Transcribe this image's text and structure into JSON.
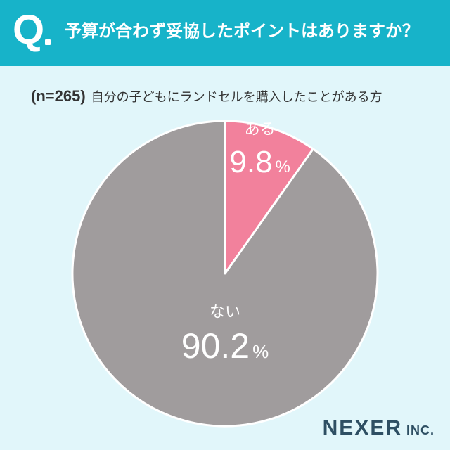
{
  "header": {
    "q_mark": "Q",
    "question": "予算が合わず妥協したポイントはありますか？"
  },
  "subtitle": {
    "n": "(n=265)",
    "text": "自分の子どもにランドセルを購入したことがある方"
  },
  "chart_data": {
    "type": "pie",
    "unit": "%",
    "slices": [
      {
        "label": "ある",
        "value": 9.8,
        "color": "#f2819c"
      },
      {
        "label": "ない",
        "value": 90.2,
        "color": "#a09c9d"
      }
    ]
  },
  "logo": {
    "main": "NEXER",
    "inc": "INC."
  },
  "colors": {
    "header": "#17b3c9",
    "background": "#e1f6fa"
  }
}
